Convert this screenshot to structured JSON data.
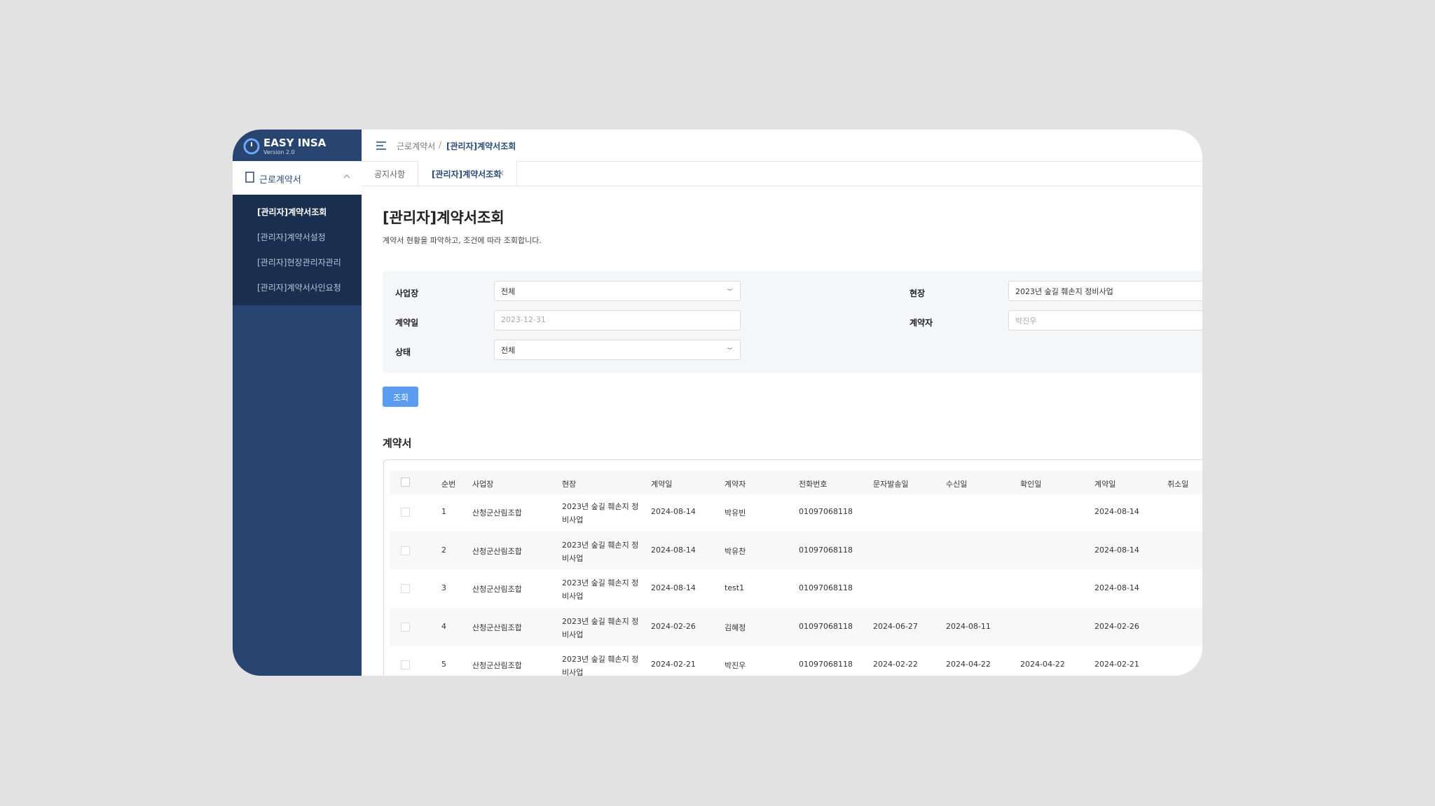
{
  "sidebar": {
    "logo": "EASY INSA",
    "version": "Version 2.0",
    "menu": "근로계약서",
    "submenu": [
      "[관리자]계약서조회",
      "[관리자]계약서설정",
      "[관리자]현장관리자관리",
      "[관리자]계약서사인요청"
    ]
  },
  "breadcrumb": [
    "근로계약서",
    "[관리자]계약서조회"
  ],
  "tabs": [
    "공지사항",
    "[관리자]계약서조회"
  ],
  "page": {
    "title": "[관리자]계약서조회",
    "description": "계약서 현황을 파악하고, 조건에 따라 조회합니다."
  },
  "filters": [
    {
      "label": "사업장",
      "value": "전체",
      "select": true
    },
    {
      "label": "현장",
      "value": "2023년 숲길 훼손지 정비사업",
      "select": false
    },
    {
      "label": "계약일",
      "placeholder": "2023-12-31",
      "select": false
    },
    {
      "label": "계약자",
      "placeholder": "박진우",
      "select": false
    },
    {
      "label": "상태",
      "value": "전체",
      "select": true
    }
  ],
  "search_button": "조회",
  "table": {
    "title": "계약서",
    "columns": [
      "순번",
      "사업장",
      "현장",
      "계약일",
      "계약자",
      "전화번호",
      "문자발송일",
      "수신일",
      "확인일",
      "계약일",
      "취소일"
    ],
    "rows": [
      [
        "1",
        "산청군산림조합",
        "2023년 숲길 훼손지 정비사업",
        "2024-08-14",
        "박유빈",
        "01097068118",
        null,
        null,
        null,
        "2024-08-14",
        null
      ],
      [
        "2",
        "산청군산림조합",
        "2023년 숲길 훼손지 정비사업",
        "2024-08-14",
        "박유찬",
        "01097068118",
        null,
        null,
        null,
        "2024-08-14",
        null
      ],
      [
        "3",
        "산청군산림조합",
        "2023년 숲길 훼손지 정비사업",
        "2024-08-14",
        "test1",
        "01097068118",
        null,
        null,
        null,
        "2024-08-14",
        null
      ],
      [
        "4",
        "산청군산림조합",
        "2023년 숲길 훼손지 정비사업",
        "2024-02-26",
        "김혜정",
        "01097068118",
        "2024-06-27",
        "2024-08-11",
        null,
        "2024-02-26",
        null
      ],
      [
        "5",
        "산청군산림조합",
        "2023년 숲길 훼손지 정비사업",
        "2024-02-21",
        "박진우",
        "01097068118",
        "2024-02-22",
        "2024-04-22",
        "2024-04-22",
        "2024-02-21",
        null
      ]
    ]
  }
}
